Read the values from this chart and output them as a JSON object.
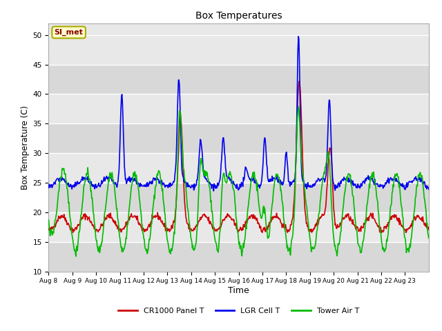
{
  "title": "Box Temperatures",
  "xlabel": "Time",
  "ylabel": "Box Temperature (C)",
  "ylim": [
    10,
    52
  ],
  "yticks": [
    10,
    15,
    20,
    25,
    30,
    35,
    40,
    45,
    50
  ],
  "plot_bg_color": "#e8e8e8",
  "fig_bg_color": "#ffffff",
  "grid_color": "#ffffff",
  "line_colors": {
    "panel": "#cc0000",
    "lgr": "#0000ee",
    "tower": "#00bb00"
  },
  "legend_labels": [
    "CR1000 Panel T",
    "LGR Cell T",
    "Tower Air T"
  ],
  "annotation_text": "SI_met",
  "annotation_bg": "#ffffcc",
  "annotation_border": "#aaaa00",
  "x_tick_labels": [
    "Aug 8",
    "Aug 9",
    "Aug 10",
    "Aug 11",
    "Aug 12",
    "Aug 13",
    "Aug 14",
    "Aug 15",
    "Aug 16",
    "Aug 17",
    "Aug 18",
    "Aug 19",
    "Aug 20",
    "Aug 21",
    "Aug 22",
    "Aug 23"
  ],
  "n_days": 16
}
